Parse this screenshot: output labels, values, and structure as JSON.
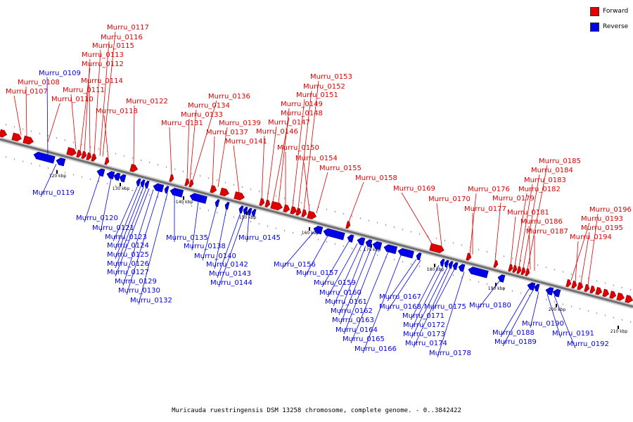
{
  "legend": {
    "forward": {
      "label": "Forward",
      "color": "#e00000"
    },
    "reverse": {
      "label": "Reverse",
      "color": "#0000e8"
    }
  },
  "caption": "Muricauda ruestringensis DSM 13258 chromosome, complete genome. - 0..3842422",
  "axis_labels": [
    "120 kbp",
    "130 kbp",
    "140 kbp",
    "150 kbp",
    "160 kbp",
    "170 kbp",
    "180 kbp",
    "190 kbp",
    "200 kbp",
    "210 kbp"
  ],
  "forward_labels": [
    "Murru_0107",
    "Murru_0108",
    "Murru_0110",
    "Murru_0111",
    "Murru_0112",
    "Murru_0113",
    "Murru_0114",
    "Murru_0115",
    "Murru_0116",
    "Murru_0117",
    "Murru_0118",
    "Murru_0122",
    "Murru_0131",
    "Murru_0133",
    "Murru_0134",
    "Murru_0136",
    "Murru_0137",
    "Murru_0139",
    "Murru_0141",
    "Murru_0146",
    "Murru_0147",
    "Murru_0148",
    "Murru_0149",
    "Murru_0150",
    "Murru_0151",
    "Murru_0152",
    "Murru_0153",
    "Murru_0154",
    "Murru_0155",
    "Murru_0158",
    "Murru_0169",
    "Murru_0170",
    "Murru_0176",
    "Murru_0177",
    "Murru_0179",
    "Murru_0181",
    "Murru_0182",
    "Murru_0183",
    "Murru_0184",
    "Murru_0185",
    "Murru_0186",
    "Murru_0187",
    "Murru_0193",
    "Murru_0194",
    "Murru_0195",
    "Murru_0196"
  ],
  "reverse_labels": [
    "Murru_0109",
    "Murru_0119",
    "Murru_0120",
    "Murru_0121",
    "Murru_0123",
    "Murru_0124",
    "Murru_0125",
    "Murru_0126",
    "Murru_0127",
    "Murru_0129",
    "Murru_0130",
    "Murru_0132",
    "Murru_0135",
    "Murru_0138",
    "Murru_0140",
    "Murru_0142",
    "Murru_0143",
    "Murru_0144",
    "Murru_0145",
    "Murru_0156",
    "Murru_0157",
    "Murru_0159",
    "Murru_0160",
    "Murru_0161",
    "Murru_0162",
    "Murru_0163",
    "Murru_0164",
    "Murru_0165",
    "Murru_0166",
    "Murru_0167",
    "Murru_0168",
    "Murru_0171",
    "Murru_0172",
    "Murru_0173",
    "Murru_0174",
    "Murru_0175",
    "Murru_0178",
    "Murru_0180",
    "Murru_0188",
    "Murru_0189",
    "Murru_0190",
    "Murru_0191",
    "Murru_0192"
  ]
}
